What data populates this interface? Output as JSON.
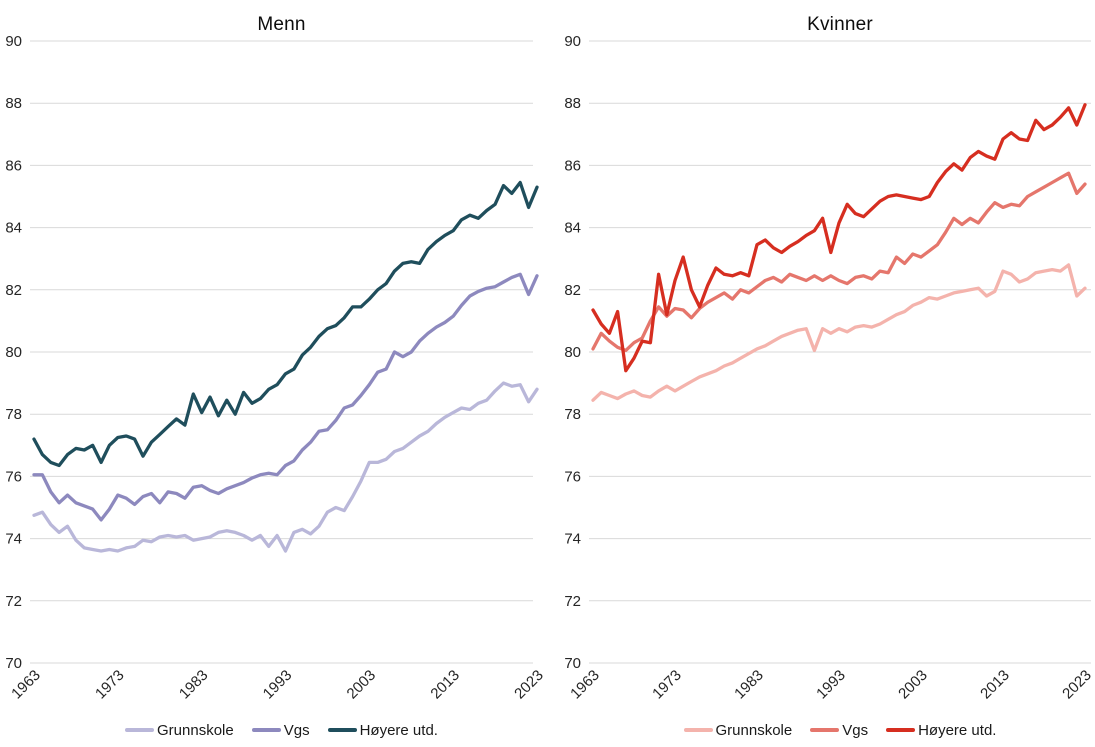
{
  "page": {
    "background": "#ffffff",
    "grid_color": "#d9d9d9",
    "tick_color": "#262626"
  },
  "chart_data": [
    {
      "type": "line",
      "title": "Menn",
      "xlabel": "",
      "ylabel": "",
      "ylim": [
        70,
        90
      ],
      "yticks": [
        70,
        72,
        74,
        76,
        78,
        80,
        82,
        84,
        86,
        88,
        90
      ],
      "xticks": [
        1963,
        1973,
        1983,
        1993,
        2003,
        2013,
        2023
      ],
      "grid": "horizontal",
      "legend_position": "bottom",
      "x": [
        1963,
        1964,
        1965,
        1966,
        1967,
        1968,
        1969,
        1970,
        1971,
        1972,
        1973,
        1974,
        1975,
        1976,
        1977,
        1978,
        1979,
        1980,
        1981,
        1982,
        1983,
        1984,
        1985,
        1986,
        1987,
        1988,
        1989,
        1990,
        1991,
        1992,
        1993,
        1994,
        1995,
        1996,
        1997,
        1998,
        1999,
        2000,
        2001,
        2002,
        2003,
        2004,
        2005,
        2006,
        2007,
        2008,
        2009,
        2010,
        2011,
        2012,
        2013,
        2014,
        2015,
        2016,
        2017,
        2018,
        2019,
        2020,
        2021,
        2022,
        2023
      ],
      "series": [
        {
          "name": "Grunnskole",
          "color": "#b9b7d9",
          "values": [
            74.75,
            74.85,
            74.45,
            74.2,
            74.4,
            73.95,
            73.7,
            73.65,
            73.6,
            73.65,
            73.6,
            73.7,
            73.75,
            73.95,
            73.9,
            74.05,
            74.1,
            74.05,
            74.1,
            73.95,
            74.0,
            74.05,
            74.2,
            74.25,
            74.2,
            74.1,
            73.95,
            74.1,
            73.75,
            74.1,
            73.6,
            74.2,
            74.3,
            74.15,
            74.4,
            74.85,
            75.0,
            74.9,
            75.35,
            75.85,
            76.45,
            76.45,
            76.55,
            76.8,
            76.9,
            77.1,
            77.3,
            77.45,
            77.7,
            77.9,
            78.05,
            78.2,
            78.15,
            78.35,
            78.45,
            78.75,
            79.0,
            78.9,
            78.95,
            78.4,
            78.8
          ]
        },
        {
          "name": "Vgs",
          "color": "#8d89be",
          "values": [
            76.05,
            76.05,
            75.5,
            75.15,
            75.4,
            75.15,
            75.05,
            74.95,
            74.6,
            74.95,
            75.4,
            75.3,
            75.1,
            75.35,
            75.45,
            75.15,
            75.5,
            75.45,
            75.3,
            75.65,
            75.7,
            75.55,
            75.45,
            75.6,
            75.7,
            75.8,
            75.95,
            76.05,
            76.1,
            76.05,
            76.35,
            76.5,
            76.85,
            77.1,
            77.45,
            77.5,
            77.8,
            78.2,
            78.3,
            78.6,
            78.95,
            79.35,
            79.45,
            80.0,
            79.85,
            80.0,
            80.35,
            80.6,
            80.8,
            80.95,
            81.15,
            81.5,
            81.8,
            81.95,
            82.05,
            82.1,
            82.25,
            82.4,
            82.5,
            81.85,
            82.45
          ]
        },
        {
          "name": "Høyere utd.",
          "color": "#1f4e5c",
          "values": [
            77.2,
            76.7,
            76.45,
            76.35,
            76.7,
            76.9,
            76.85,
            77.0,
            76.45,
            77.0,
            77.25,
            77.3,
            77.2,
            76.65,
            77.1,
            77.35,
            77.6,
            77.85,
            77.65,
            78.65,
            78.05,
            78.55,
            77.95,
            78.45,
            78.0,
            78.7,
            78.35,
            78.5,
            78.8,
            78.95,
            79.3,
            79.45,
            79.9,
            80.15,
            80.5,
            80.75,
            80.85,
            81.1,
            81.45,
            81.45,
            81.7,
            82.0,
            82.2,
            82.6,
            82.85,
            82.9,
            82.85,
            83.3,
            83.55,
            83.75,
            83.9,
            84.25,
            84.4,
            84.3,
            84.55,
            84.75,
            85.35,
            85.1,
            85.45,
            84.65,
            85.3
          ]
        }
      ]
    },
    {
      "type": "line",
      "title": "Kvinner",
      "xlabel": "",
      "ylabel": "",
      "ylim": [
        70,
        90
      ],
      "yticks": [
        70,
        72,
        74,
        76,
        78,
        80,
        82,
        84,
        86,
        88,
        90
      ],
      "xticks": [
        1963,
        1973,
        1983,
        1993,
        2003,
        2013,
        2023
      ],
      "grid": "horizontal",
      "legend_position": "bottom",
      "x": [
        1963,
        1964,
        1965,
        1966,
        1967,
        1968,
        1969,
        1970,
        1971,
        1972,
        1973,
        1974,
        1975,
        1976,
        1977,
        1978,
        1979,
        1980,
        1981,
        1982,
        1983,
        1984,
        1985,
        1986,
        1987,
        1988,
        1989,
        1990,
        1991,
        1992,
        1993,
        1994,
        1995,
        1996,
        1997,
        1998,
        1999,
        2000,
        2001,
        2002,
        2003,
        2004,
        2005,
        2006,
        2007,
        2008,
        2009,
        2010,
        2011,
        2012,
        2013,
        2014,
        2015,
        2016,
        2017,
        2018,
        2019,
        2020,
        2021,
        2022,
        2023
      ],
      "series": [
        {
          "name": "Grunnskole",
          "color": "#f4b3ac",
          "values": [
            78.45,
            78.7,
            78.6,
            78.5,
            78.65,
            78.75,
            78.6,
            78.55,
            78.75,
            78.9,
            78.75,
            78.9,
            79.05,
            79.2,
            79.3,
            79.4,
            79.55,
            79.65,
            79.8,
            79.95,
            80.1,
            80.2,
            80.35,
            80.5,
            80.6,
            80.7,
            80.75,
            80.05,
            80.75,
            80.6,
            80.75,
            80.65,
            80.8,
            80.85,
            80.8,
            80.9,
            81.05,
            81.2,
            81.3,
            81.5,
            81.6,
            81.75,
            81.7,
            81.8,
            81.9,
            81.95,
            82.0,
            82.05,
            81.8,
            81.95,
            82.6,
            82.5,
            82.25,
            82.35,
            82.55,
            82.6,
            82.65,
            82.6,
            82.8,
            81.8,
            82.05
          ]
        },
        {
          "name": "Vgs",
          "color": "#e5766c",
          "values": [
            80.1,
            80.6,
            80.35,
            80.15,
            80.05,
            80.3,
            80.45,
            81.0,
            81.45,
            81.15,
            81.4,
            81.35,
            81.1,
            81.4,
            81.6,
            81.75,
            81.9,
            81.7,
            82.0,
            81.9,
            82.1,
            82.3,
            82.4,
            82.25,
            82.5,
            82.4,
            82.3,
            82.45,
            82.3,
            82.45,
            82.3,
            82.2,
            82.4,
            82.45,
            82.35,
            82.6,
            82.55,
            83.05,
            82.85,
            83.15,
            83.05,
            83.25,
            83.45,
            83.85,
            84.3,
            84.1,
            84.3,
            84.15,
            84.5,
            84.8,
            84.65,
            84.75,
            84.7,
            85.0,
            85.15,
            85.3,
            85.45,
            85.6,
            85.75,
            85.1,
            85.4
          ]
        },
        {
          "name": "Høyere utd.",
          "color": "#d62e20",
          "values": [
            81.35,
            80.9,
            80.6,
            81.3,
            79.4,
            79.8,
            80.35,
            80.3,
            82.5,
            81.2,
            82.3,
            83.05,
            82.0,
            81.45,
            82.15,
            82.7,
            82.5,
            82.45,
            82.55,
            82.45,
            83.45,
            83.6,
            83.35,
            83.2,
            83.4,
            83.55,
            83.75,
            83.9,
            84.3,
            83.2,
            84.15,
            84.75,
            84.45,
            84.35,
            84.6,
            84.85,
            85.0,
            85.05,
            85.0,
            84.95,
            84.9,
            85.0,
            85.45,
            85.8,
            86.05,
            85.85,
            86.25,
            86.45,
            86.3,
            86.2,
            86.85,
            87.05,
            86.85,
            86.8,
            87.45,
            87.15,
            87.3,
            87.55,
            87.85,
            87.3,
            87.95
          ]
        }
      ]
    }
  ]
}
